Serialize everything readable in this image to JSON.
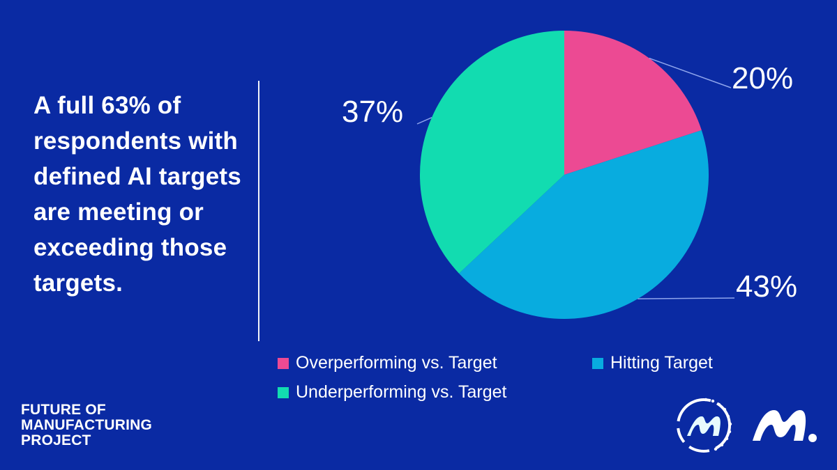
{
  "headline": "A full 63% of respondents with defined AI targets are meeting or exceeding those targets.",
  "chart_data": {
    "type": "pie",
    "slices": [
      {
        "label": "Overperforming vs. Target",
        "value": 20,
        "display": "20%",
        "color": "#ec4a93"
      },
      {
        "label": "Hitting Target",
        "value": 43,
        "display": "43%",
        "color": "#08acdf"
      },
      {
        "label": "Underperforming vs. Target",
        "value": 37,
        "display": "37%",
        "color": "#12dcb0"
      }
    ],
    "legend_placement": "bottom",
    "start_angle": "12 o'clock",
    "direction": "clockwise"
  },
  "footer": {
    "line1": "FUTURE OF",
    "line2": "MANUFACTURING",
    "line3": "PROJECT"
  },
  "logos": {
    "circle_logo_icon": "circular-m-logo-icon",
    "mark_logo_icon": "m-dot-logo-icon"
  },
  "theme": {
    "background": "#0a2aa3",
    "text": "#ffffff",
    "leader_line": "#8fa5ec"
  }
}
